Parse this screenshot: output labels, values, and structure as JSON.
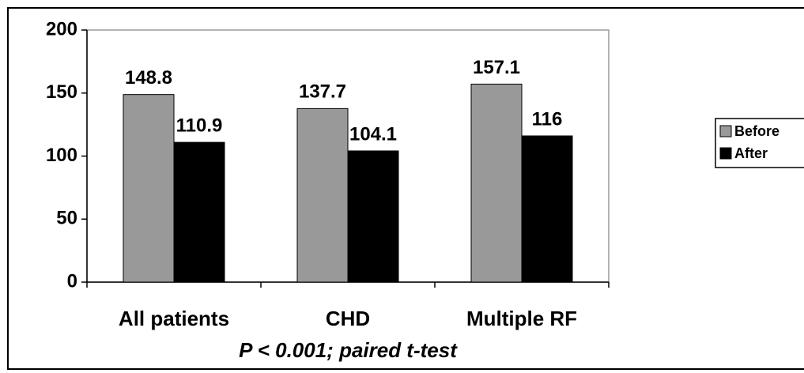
{
  "chart_data": {
    "type": "bar",
    "categories": [
      "All patients",
      "CHD",
      "Multiple RF"
    ],
    "series": [
      {
        "name": "Before",
        "color": "#999999",
        "values": [
          148.8,
          137.7,
          157.1
        ]
      },
      {
        "name": "After",
        "color": "#000000",
        "values": [
          110.9,
          104.1,
          116
        ]
      }
    ],
    "ylim": [
      0,
      200
    ],
    "yticks": [
      0,
      50,
      100,
      150,
      200
    ],
    "note": "P < 0.001; paired t-test",
    "legend": "right"
  }
}
